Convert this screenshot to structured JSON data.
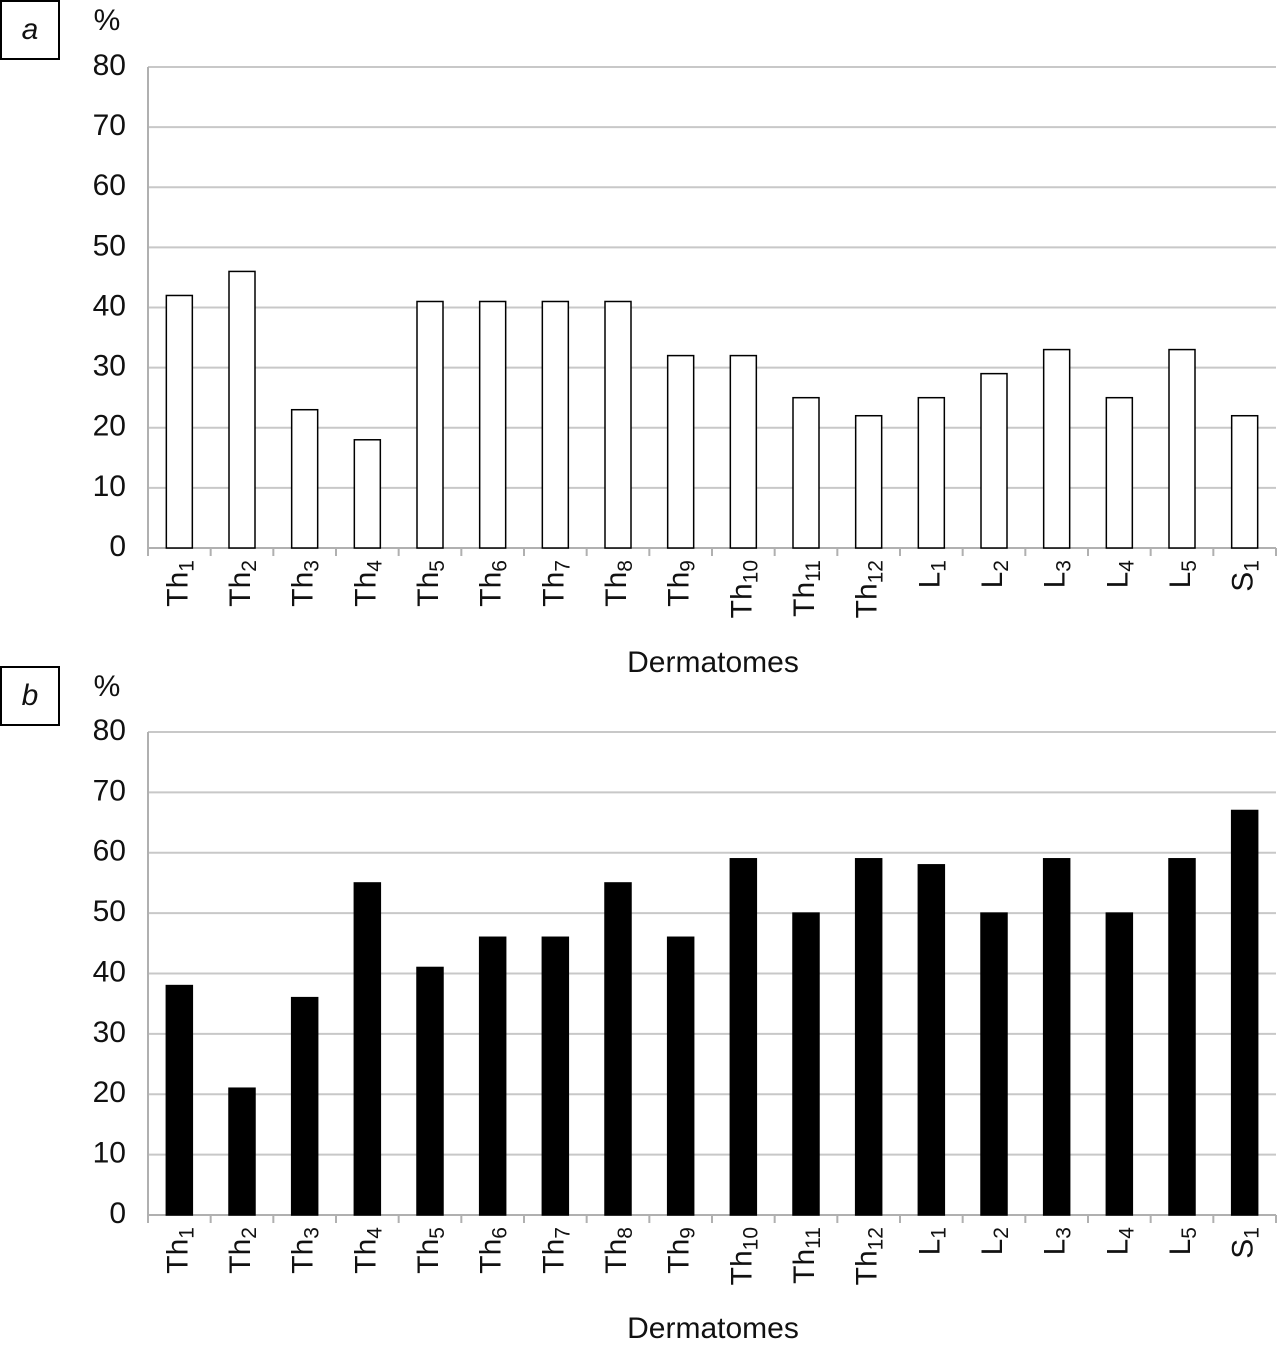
{
  "chart_data": [
    {
      "type": "bar",
      "panel_label": "a",
      "y_label": "%",
      "x_label": "Dermatomes",
      "categories": [
        "Th1",
        "Th2",
        "Th3",
        "Th4",
        "Th5",
        "Th6",
        "Th7",
        "Th8",
        "Th9",
        "Th10",
        "Th11",
        "Th12",
        "L1",
        "L2",
        "L3",
        "L4",
        "L5",
        "S1"
      ],
      "values": [
        42,
        46,
        23,
        18,
        41,
        41,
        41,
        41,
        32,
        32,
        25,
        22,
        25,
        29,
        33,
        25,
        33,
        22
      ],
      "color": "#ffffff",
      "ylim": [
        0,
        80
      ],
      "yticks": [
        0,
        10,
        20,
        30,
        40,
        50,
        60,
        70,
        80
      ],
      "grid": true
    },
    {
      "type": "bar",
      "panel_label": "b",
      "y_label": "%",
      "x_label": "Dermatomes",
      "categories": [
        "Th1",
        "Th2",
        "Th3",
        "Th4",
        "Th5",
        "Th6",
        "Th7",
        "Th8",
        "Th9",
        "Th10",
        "Th11",
        "Th12",
        "L1",
        "L2",
        "L3",
        "L4",
        "L5",
        "S1"
      ],
      "values": [
        38,
        21,
        36,
        55,
        41,
        46,
        46,
        55,
        46,
        59,
        50,
        59,
        58,
        50,
        59,
        50,
        59,
        67
      ],
      "color": "#000000",
      "ylim": [
        0,
        80
      ],
      "yticks": [
        0,
        10,
        20,
        30,
        40,
        50,
        60,
        70,
        80
      ],
      "grid": true
    }
  ]
}
